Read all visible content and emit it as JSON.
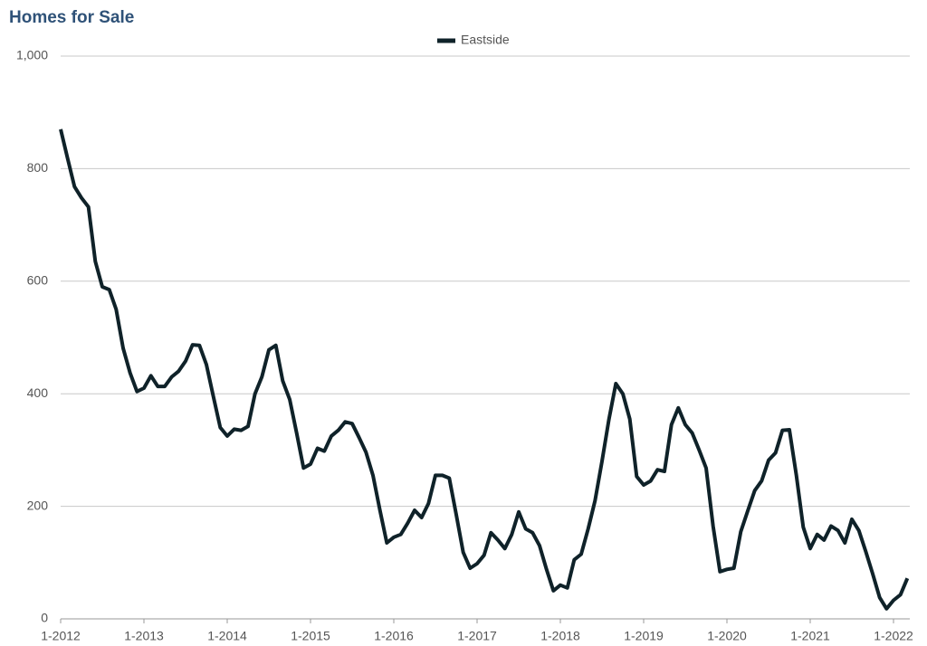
{
  "chart_data": {
    "type": "line",
    "title": "Homes for Sale",
    "categories": [
      "1-2012",
      null,
      null,
      null,
      null,
      null,
      null,
      null,
      null,
      null,
      null,
      null,
      "1-2013",
      null,
      null,
      null,
      null,
      null,
      null,
      null,
      null,
      null,
      null,
      null,
      "1-2014",
      null,
      null,
      null,
      null,
      null,
      null,
      null,
      null,
      null,
      null,
      null,
      "1-2015",
      null,
      null,
      null,
      null,
      null,
      null,
      null,
      null,
      null,
      null,
      null,
      "1-2016",
      null,
      null,
      null,
      null,
      null,
      null,
      null,
      null,
      null,
      null,
      null,
      "1-2017",
      null,
      null,
      null,
      null,
      null,
      null,
      null,
      null,
      null,
      null,
      null,
      "1-2018",
      null,
      null,
      null,
      null,
      null,
      null,
      null,
      null,
      null,
      null,
      null,
      "1-2019",
      null,
      null,
      null,
      null,
      null,
      null,
      null,
      null,
      null,
      null,
      null,
      "1-2020",
      null,
      null,
      null,
      null,
      null,
      null,
      null,
      null,
      null,
      null,
      null,
      "1-2021",
      null,
      null,
      null,
      null,
      null,
      null,
      null,
      null,
      null,
      null,
      null,
      "1-2022",
      null,
      null
    ],
    "series": [
      {
        "name": "Eastside",
        "color": "#0f2229",
        "values": [
          870,
          818,
          768,
          748,
          732,
          635,
          590,
          585,
          550,
          481,
          437,
          404,
          410,
          432,
          413,
          413,
          430,
          440,
          458,
          487,
          486,
          452,
          395,
          340,
          325,
          337,
          335,
          342,
          400,
          430,
          478,
          486,
          423,
          390,
          330,
          268,
          275,
          303,
          298,
          325,
          335,
          350,
          347,
          322,
          296,
          255,
          193,
          135,
          145,
          150,
          170,
          193,
          180,
          205,
          255,
          255,
          250,
          185,
          118,
          90,
          98,
          113,
          153,
          140,
          125,
          150,
          190,
          160,
          153,
          130,
          88,
          50,
          60,
          55,
          105,
          115,
          160,
          210,
          280,
          355,
          418,
          400,
          355,
          253,
          238,
          245,
          265,
          262,
          345,
          375,
          345,
          330,
          300,
          268,
          165,
          84,
          88,
          90,
          155,
          192,
          228,
          245,
          282,
          295,
          335,
          336,
          255,
          163,
          125,
          150,
          140,
          165,
          157,
          135,
          177,
          157,
          120,
          80,
          38,
          18,
          33,
          43,
          72
        ]
      }
    ],
    "ylim": [
      0,
      1000
    ],
    "yticks": [
      0,
      200,
      400,
      600,
      800,
      {
        "value": 1000,
        "label": "1,000"
      }
    ],
    "grid": true,
    "legend": "top"
  }
}
